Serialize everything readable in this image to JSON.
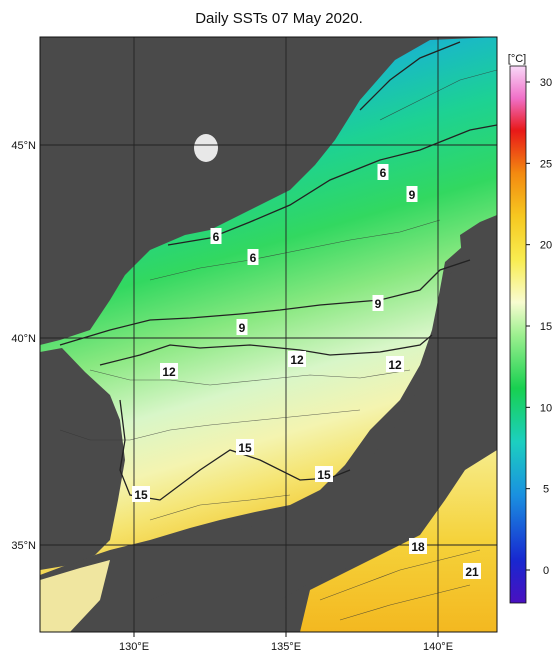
{
  "title": "Daily SSTs 07 May 2020.",
  "unit": "[°C]",
  "lon_ticks": [
    "130°E",
    "135°E",
    "140°E"
  ],
  "lat_ticks": [
    "45°N",
    "40°N",
    "35°N"
  ],
  "colorbar_ticks": [
    "30",
    "25",
    "20",
    "15",
    "10",
    "5",
    "0"
  ],
  "contour_labels": [
    "6",
    "6",
    "6",
    "9",
    "9",
    "9",
    "12",
    "12",
    "12",
    "15",
    "15",
    "15",
    "18",
    "21"
  ],
  "colors": {
    "land": "#4a4a4a",
    "cold": "#1a2fd0",
    "cool": "#19b8c8",
    "mid": "#26d468",
    "warm": "#f0f090",
    "hot": "#f5c020"
  }
}
